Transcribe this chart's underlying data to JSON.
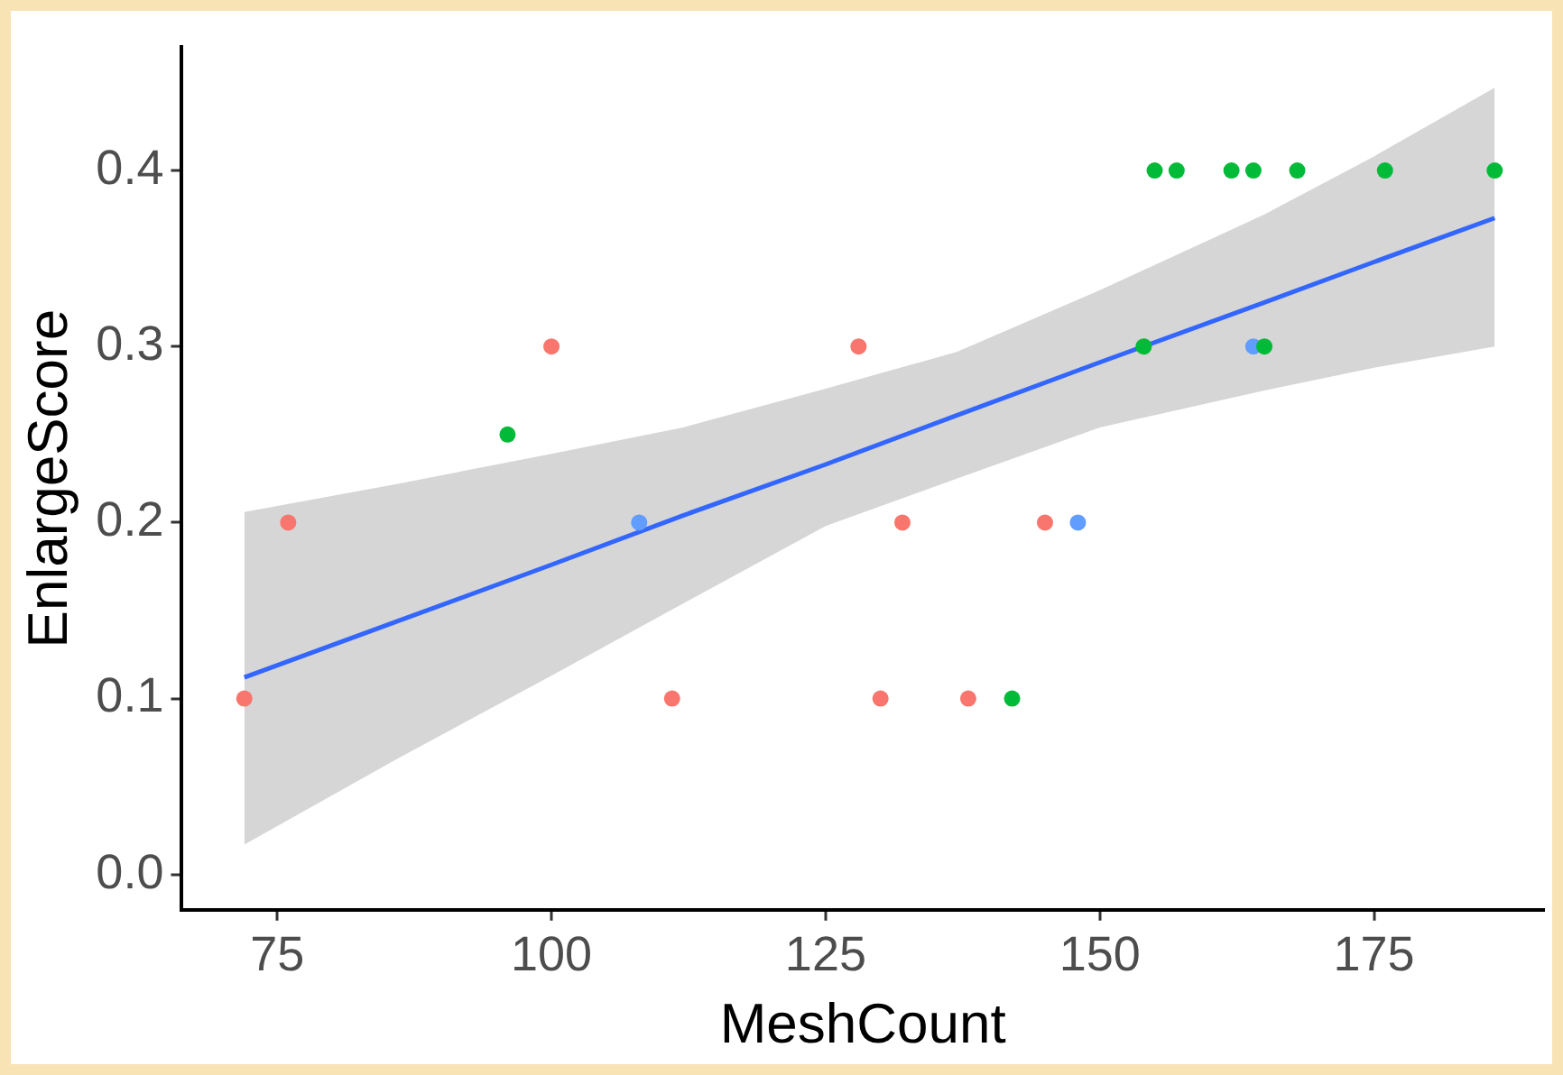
{
  "chart_data": {
    "type": "scatter",
    "xlabel": "MeshCount",
    "ylabel": "EnlargeScore",
    "xlim": [
      66.3,
      190.5
    ],
    "xticks": [
      75,
      100,
      125,
      150,
      175
    ],
    "ylim": [
      -0.02,
      0.47
    ],
    "yticks": [
      {
        "value": 0,
        "label": "0.0"
      },
      0.1,
      0.2,
      0.3,
      0.4
    ],
    "grid": false,
    "legend": false,
    "marker": "circle",
    "series": [
      {
        "color": "#f8766d",
        "x": [
          72,
          76,
          100,
          111,
          128,
          130,
          132,
          138,
          145
        ],
        "values": [
          0.1,
          0.2,
          0.3,
          0.1,
          0.3,
          0.1,
          0.2,
          0.1,
          0.2
        ]
      },
      {
        "color": "#00ba38",
        "x": [
          96,
          142,
          154,
          155,
          157,
          162,
          164,
          165,
          168,
          176,
          186
        ],
        "values": [
          0.25,
          0.1,
          0.3,
          0.4,
          0.4,
          0.4,
          0.4,
          0.3,
          0.4,
          0.4,
          0.4
        ]
      },
      {
        "color": "#619cff",
        "x": [
          108,
          148,
          164
        ],
        "values": [
          0.2,
          0.2,
          0.3
        ]
      },
      {
        "type": "line",
        "color": "#3366ff",
        "marker": "none",
        "x": [
          72,
          86,
          100,
          112,
          125,
          137,
          150,
          165,
          175,
          186
        ],
        "values": [
          0.112,
          0.144,
          0.176,
          0.204,
          0.233,
          0.261,
          0.291,
          0.325,
          0.348,
          0.373
        ],
        "lower": [
          0.017,
          0.066,
          0.113,
          0.154,
          0.198,
          0.225,
          0.254,
          0.275,
          0.288,
          0.3
        ],
        "upper": [
          0.206,
          0.222,
          0.239,
          0.254,
          0.276,
          0.297,
          0.332,
          0.375,
          0.408,
          0.447
        ]
      }
    ]
  }
}
